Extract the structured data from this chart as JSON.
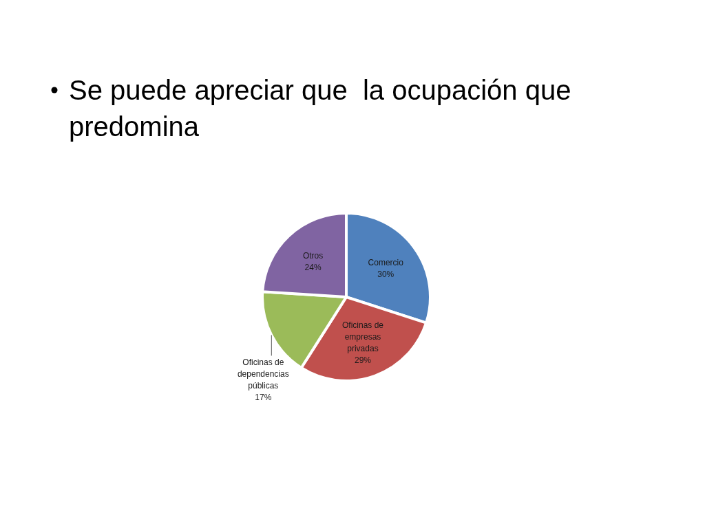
{
  "chart_data": {
    "type": "pie",
    "title": "Se puede apreciar que  la ocupación que predomina",
    "categories": [
      "Comercio",
      "Oficinas de empresas privadas",
      "Oficinas de dependencias públicas",
      "Otros"
    ],
    "values": [
      30,
      29,
      17,
      24
    ],
    "colors": [
      "#4f81bd",
      "#c0504d",
      "#9bbb59",
      "#8064a2"
    ],
    "value_labels": [
      "30%",
      "29%",
      "17%",
      "24%"
    ]
  }
}
